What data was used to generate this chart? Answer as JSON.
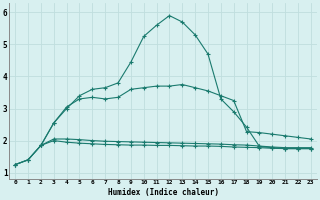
{
  "title": "",
  "xlabel": "Humidex (Indice chaleur)",
  "bg_color": "#d8f0f0",
  "line_color": "#1a7a6e",
  "grid_color": "#c0dede",
  "xlim": [
    -0.5,
    23.5
  ],
  "ylim": [
    0.8,
    6.3
  ],
  "xticks": [
    0,
    1,
    2,
    3,
    4,
    5,
    6,
    7,
    8,
    9,
    10,
    11,
    12,
    13,
    14,
    15,
    16,
    17,
    18,
    19,
    20,
    21,
    22,
    23
  ],
  "yticks": [
    1,
    2,
    3,
    4,
    5,
    6
  ],
  "line1_x": [
    0,
    1,
    2,
    3,
    4,
    5,
    6,
    7,
    8,
    9,
    10,
    11,
    12,
    13,
    14,
    15,
    16,
    17,
    18,
    19,
    20,
    21,
    22,
    23
  ],
  "line1_y": [
    1.25,
    1.4,
    1.85,
    2.0,
    1.95,
    1.92,
    1.9,
    1.88,
    1.87,
    1.86,
    1.86,
    1.85,
    1.85,
    1.84,
    1.83,
    1.83,
    1.82,
    1.8,
    1.79,
    1.78,
    1.76,
    1.75,
    1.75,
    1.75
  ],
  "line2_x": [
    0,
    1,
    2,
    3,
    4,
    5,
    6,
    7,
    8,
    9,
    10,
    11,
    12,
    13,
    14,
    15,
    16,
    17,
    18,
    19,
    20,
    21,
    22,
    23
  ],
  "line2_y": [
    1.25,
    1.4,
    1.85,
    2.05,
    2.05,
    2.03,
    2.0,
    1.98,
    1.97,
    1.96,
    1.95,
    1.94,
    1.93,
    1.92,
    1.91,
    1.9,
    1.89,
    1.87,
    1.86,
    1.83,
    1.8,
    1.78,
    1.78,
    1.78
  ],
  "line3_x": [
    2,
    3,
    4,
    5,
    6,
    7,
    8,
    9,
    10,
    11,
    12,
    13,
    14,
    15,
    16,
    17,
    18,
    19,
    20,
    21,
    22,
    23
  ],
  "line3_y": [
    1.85,
    2.55,
    3.05,
    3.3,
    3.35,
    3.3,
    3.35,
    3.6,
    3.65,
    3.7,
    3.7,
    3.75,
    3.65,
    3.55,
    3.4,
    3.25,
    2.28,
    2.25,
    2.2,
    2.15,
    2.1,
    2.05
  ],
  "line4_x": [
    0,
    1,
    2,
    3,
    4,
    5,
    6,
    7,
    8,
    9,
    10,
    11,
    12,
    13,
    14,
    15,
    16,
    17,
    18,
    19,
    20,
    21,
    22,
    23
  ],
  "line4_y": [
    1.25,
    1.4,
    1.85,
    2.55,
    3.0,
    3.4,
    3.6,
    3.65,
    3.8,
    4.45,
    5.25,
    5.6,
    5.9,
    5.7,
    5.3,
    4.7,
    3.3,
    2.9,
    2.42,
    1.82,
    1.78,
    1.75,
    1.75,
    1.75
  ],
  "marker": "+"
}
